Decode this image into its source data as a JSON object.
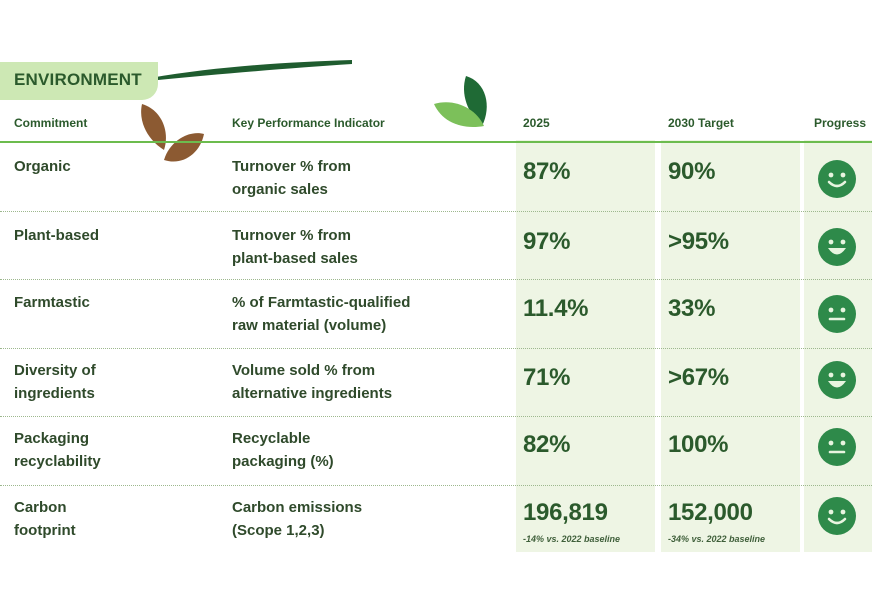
{
  "section": {
    "title": "ENVIRONMENT"
  },
  "columns": {
    "commitment": "Commitment",
    "kpi": "Key Performance Indicator",
    "current": "2025",
    "target": "2030 Target",
    "progress": "Progress"
  },
  "rows": [
    {
      "commitment": "Organic",
      "kpi": "Turnover % from\norganic sales",
      "current": "87%",
      "current_note": "",
      "target": "90%",
      "target_note": "",
      "progress_icon": "smile-icon"
    },
    {
      "commitment": "Plant-based",
      "kpi": "Turnover % from\nplant-based sales",
      "current": "97%",
      "current_note": "",
      "target": ">95%",
      "target_note": "",
      "progress_icon": "big-smile-icon"
    },
    {
      "commitment": "Farmtastic",
      "kpi": "% of Farmtastic-qualified\nraw material (volume)",
      "current": "11.4%",
      "current_note": "",
      "target": "33%",
      "target_note": "",
      "progress_icon": "neutral-face-icon"
    },
    {
      "commitment": "Diversity of\ningredients",
      "kpi": "Volume sold % from\nalternative ingredients",
      "current": "71%",
      "current_note": "",
      "target": ">67%",
      "target_note": "",
      "progress_icon": "big-smile-icon"
    },
    {
      "commitment": "Packaging\nrecyclability",
      "kpi": "Recyclable\npackaging (%)",
      "current": "82%",
      "current_note": "",
      "target": "100%",
      "target_note": "",
      "progress_icon": "neutral-face-icon"
    },
    {
      "commitment": "Carbon\nfootprint",
      "kpi": "Carbon emissions\n(Scope 1,2,3)",
      "current": "196,819",
      "current_note": "-14% vs. 2022 baseline",
      "target": "152,000",
      "target_note": "-34% vs. 2022 baseline",
      "progress_icon": "smile-icon"
    }
  ],
  "colors": {
    "accent_green": "#6cbc4e",
    "dark_green": "#2b5a2c",
    "band_green": "#eef5e4",
    "face_green": "#2e8a4a",
    "leaf_brown": "#8c5a32"
  }
}
